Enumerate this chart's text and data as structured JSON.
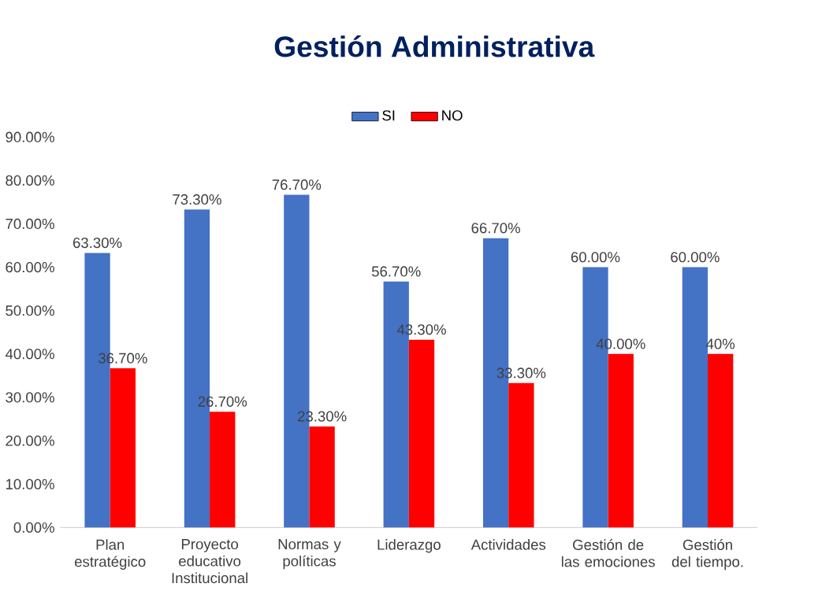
{
  "chart_data": {
    "type": "bar",
    "title": "Gestión Administrativa",
    "categories": [
      "Plan estratégico",
      "Proyecto educativo Institucional",
      "Normas y políticas",
      "Liderazgo",
      "Actividades",
      "Gestión de las emociones",
      "Gestión del tiempo."
    ],
    "series": [
      {
        "name": "SI",
        "color": "#4472c4",
        "values": [
          63.3,
          73.3,
          76.7,
          56.7,
          66.7,
          60,
          60
        ],
        "value_labels": [
          "63.30%",
          "73.30%",
          "76.70%",
          "56.70%",
          "66.70%",
          "60.00%",
          "60.00%"
        ]
      },
      {
        "name": "NO",
        "color": "#ff0000",
        "values": [
          36.7,
          26.7,
          23.3,
          43.3,
          33.3,
          40,
          40
        ],
        "value_labels": [
          "36.70%",
          "26.70%",
          "23.30%",
          "43.30%",
          "33.30%",
          "40.00%",
          "40%"
        ]
      }
    ],
    "ylim": [
      0,
      90
    ],
    "yticks": [
      {
        "value": 0,
        "label": "0.00%"
      },
      {
        "value": 10,
        "label": "10.00%"
      },
      {
        "value": 20,
        "label": "20.00%"
      },
      {
        "value": 30,
        "label": "30.00%"
      },
      {
        "value": 40,
        "label": "40.00%"
      },
      {
        "value": 50,
        "label": "50.00%"
      },
      {
        "value": 60,
        "label": "60.00%"
      },
      {
        "value": 70,
        "label": "70.00%"
      },
      {
        "value": 80,
        "label": "80.00%"
      },
      {
        "value": 90,
        "label": "90.00%"
      }
    ],
    "grid": false,
    "legend": "top"
  }
}
